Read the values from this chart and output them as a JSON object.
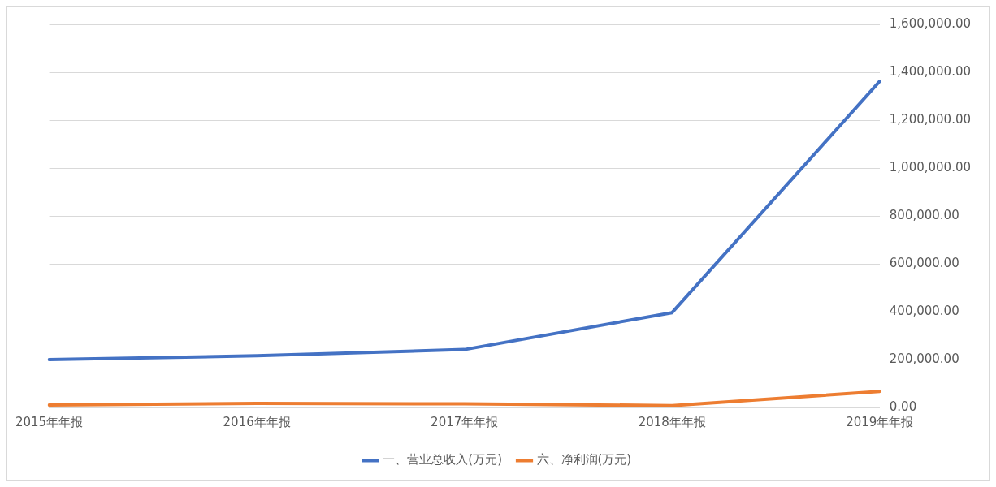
{
  "chart_data": {
    "type": "line",
    "categories": [
      "2015年年报",
      "2016年年报",
      "2017年年报",
      "2018年年报",
      "2019年年报"
    ],
    "series": [
      {
        "name": "一、营业总收入(万元)",
        "color": "#4472c4",
        "values": [
          200000,
          216000,
          242000,
          396000,
          1362000
        ]
      },
      {
        "name": "六、净利润(万元)",
        "color": "#ed7d31",
        "values": [
          10000,
          17000,
          15000,
          8000,
          67000
        ]
      }
    ],
    "ylim": [
      0,
      1600000
    ],
    "yticks": [
      {
        "value": 0,
        "label": "0.00"
      },
      {
        "value": 200000,
        "label": "200,000.00"
      },
      {
        "value": 400000,
        "label": "400,000.00"
      },
      {
        "value": 600000,
        "label": "600,000.00"
      },
      {
        "value": 800000,
        "label": "800,000.00"
      },
      {
        "value": 1000000,
        "label": "1,000,000.00"
      },
      {
        "value": 1200000,
        "label": "1,200,000.00"
      },
      {
        "value": 1400000,
        "label": "1,400,000.00"
      },
      {
        "value": 1600000,
        "label": "1,600,000.00"
      }
    ],
    "grid": "y",
    "legend": "bottom",
    "marker": "none",
    "line_style": "solid"
  }
}
